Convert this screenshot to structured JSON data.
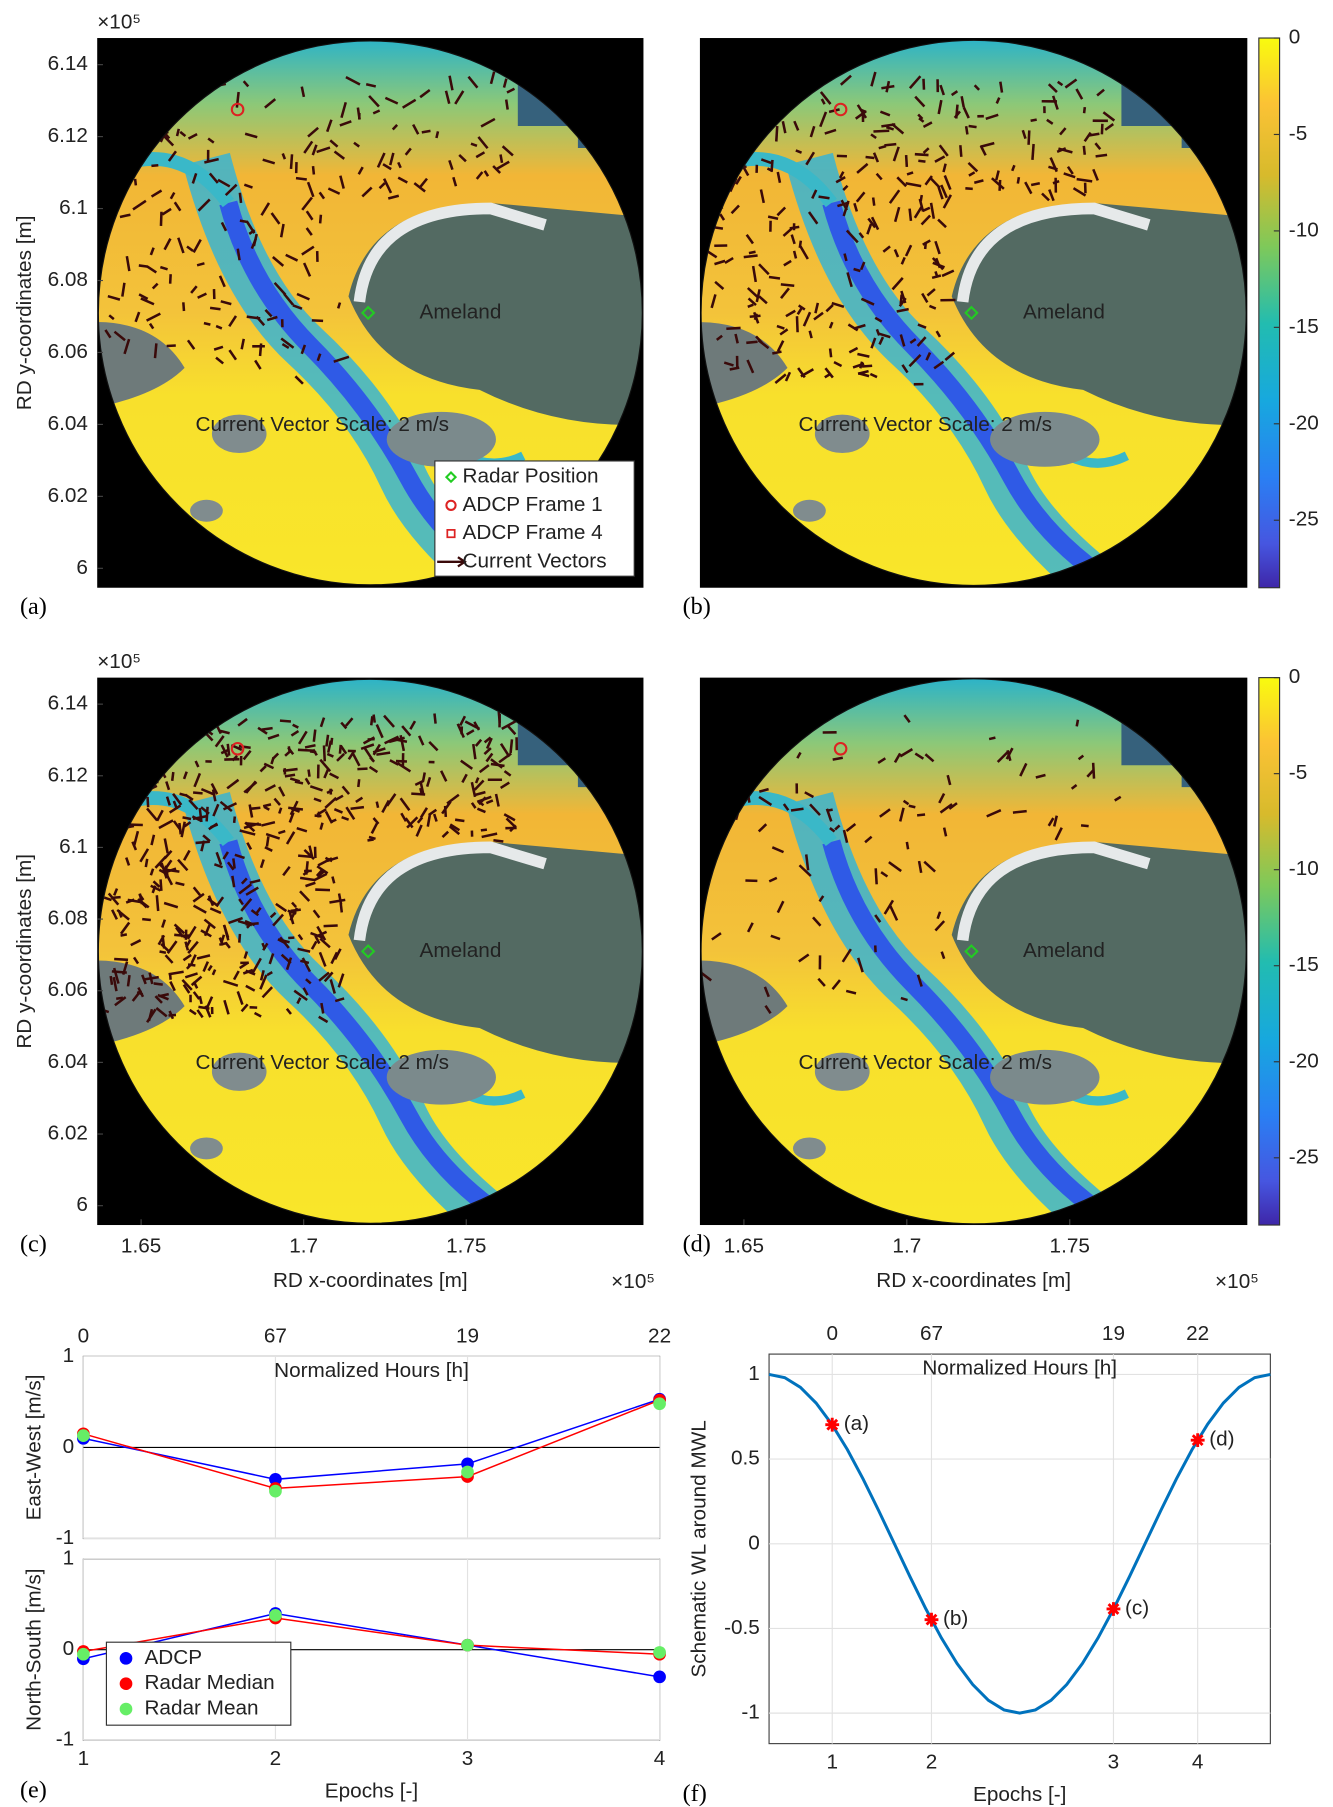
{
  "chart_data": [
    {
      "type": "map",
      "panel": "(a)",
      "ylabel": "RD y-coordinates [m]",
      "y_multiplier": "×10⁵",
      "ylim": [
        5.9946,
        6.1474
      ],
      "yticks": [
        6,
        6.02,
        6.04,
        6.06,
        6.08,
        6.1,
        6.12,
        6.14
      ],
      "annotations": [
        "Ameland",
        "Current Vector Scale: 2 m/s"
      ],
      "legend": [
        {
          "name": "Radar Position",
          "color": "#22cc22",
          "marker": "diamond"
        },
        {
          "name": "ADCP Frame 1",
          "color": "#dd2222",
          "marker": "circle"
        },
        {
          "name": "ADCP Frame 4",
          "color": "#dd2222",
          "marker": "square"
        },
        {
          "name": "Current Vectors",
          "color": "#3a0a0a",
          "marker": "arrow"
        }
      ],
      "legend_position": "lower right"
    },
    {
      "type": "map",
      "panel": "(b)",
      "annotations": [
        "Ameland",
        "Current Vector Scale: 2 m/s"
      ],
      "colorbar": {
        "ylim": [
          -28.5,
          0
        ],
        "yticks": [
          0,
          -5,
          -10,
          -15,
          -20,
          -25
        ]
      }
    },
    {
      "type": "map",
      "panel": "(c)",
      "ylabel": "RD y-coordinates [m]",
      "y_multiplier": "×10⁵",
      "ylim": [
        5.9946,
        6.1474
      ],
      "yticks": [
        6,
        6.02,
        6.04,
        6.06,
        6.08,
        6.1,
        6.12,
        6.14
      ],
      "xlabel": "RD x-coordinates [m]",
      "x_multiplier": "×10⁵",
      "xlim": [
        1.6365,
        1.8045
      ],
      "xticks": [
        1.65,
        1.7,
        1.75
      ],
      "annotations": [
        "Ameland",
        "Current Vector Scale: 2 m/s"
      ]
    },
    {
      "type": "map",
      "panel": "(d)",
      "xlabel": "RD x-coordinates [m]",
      "x_multiplier": "×10⁵",
      "xlim": [
        1.6365,
        1.8045
      ],
      "xticks": [
        1.65,
        1.7,
        1.75
      ],
      "annotations": [
        "Ameland",
        "Current Vector Scale: 2 m/s"
      ],
      "colorbar": {
        "ylim": [
          -28.5,
          0
        ],
        "yticks": [
          0,
          -5,
          -10,
          -15,
          -20,
          -25
        ]
      }
    },
    {
      "type": "line",
      "panel": "(e)",
      "top_label": "Normalized Hours [h]",
      "xlabel": "Epochs [-]",
      "x": [
        1,
        2,
        3,
        4
      ],
      "xlim": [
        1,
        4
      ],
      "xticks": [
        1,
        2,
        3,
        4
      ],
      "x2ticks": [
        {
          "value": 1,
          "label": "0"
        },
        {
          "value": 2,
          "label": "67"
        },
        {
          "value": 3,
          "label": "19"
        },
        {
          "value": 4,
          "label": "22"
        }
      ],
      "grid": true,
      "legend_position": "lower left",
      "legend": [
        {
          "name": "ADCP",
          "color": "#0000ff",
          "line": true
        },
        {
          "name": "Radar Median",
          "color": "#ff0000",
          "line": true
        },
        {
          "name": "Radar Mean",
          "color": "#66ee66",
          "line": false
        }
      ],
      "subplots": [
        {
          "ylabel": "East-West [m/s]",
          "ylim": [
            -1,
            1
          ],
          "yticks": [
            -1,
            0,
            1
          ],
          "series": [
            {
              "values": [
                0.1,
                -0.35,
                -0.18,
                0.53
              ]
            },
            {
              "values": [
                0.15,
                -0.45,
                -0.32,
                0.52
              ]
            },
            {
              "values": [
                0.13,
                -0.48,
                -0.27,
                0.48
              ]
            }
          ]
        },
        {
          "ylabel": "North-South [m/s]",
          "ylim": [
            -1,
            1
          ],
          "yticks": [
            -1,
            0,
            1
          ],
          "series": [
            {
              "values": [
                -0.1,
                0.4,
                0.05,
                -0.3
              ]
            },
            {
              "values": [
                -0.02,
                0.35,
                0.05,
                -0.05
              ]
            },
            {
              "values": [
                -0.05,
                0.38,
                0.05,
                -0.03
              ]
            }
          ]
        }
      ]
    },
    {
      "type": "line",
      "panel": "(f)",
      "top_label": "Normalized Hours [h]",
      "xlabel": "Epochs [-]",
      "ylabel": "Schematic WL around MWL",
      "xlim": [
        0,
        1
      ],
      "xticks": [
        {
          "value": 0.126,
          "label": "1"
        },
        {
          "value": 0.324,
          "label": "2"
        },
        {
          "value": 0.687,
          "label": "3"
        },
        {
          "value": 0.855,
          "label": "4"
        }
      ],
      "x2ticks": [
        {
          "value": 0.126,
          "label": "0"
        },
        {
          "value": 0.324,
          "label": "67"
        },
        {
          "value": 0.687,
          "label": "19"
        },
        {
          "value": 0.855,
          "label": "22"
        }
      ],
      "ylim": [
        -1.18,
        1.12
      ],
      "yticks": [
        -1,
        -0.5,
        0,
        0.5,
        1
      ],
      "grid": true,
      "series": [
        {
          "color": "#0072bd",
          "x": [
            0,
            0.03125,
            0.0625,
            0.09375,
            0.125,
            0.15625,
            0.1875,
            0.21875,
            0.25,
            0.28125,
            0.3125,
            0.34375,
            0.375,
            0.40625,
            0.4375,
            0.46875,
            0.5,
            0.53125,
            0.5625,
            0.59375,
            0.625,
            0.65625,
            0.6875,
            0.71875,
            0.75,
            0.78125,
            0.8125,
            0.84375,
            0.875,
            0.90625,
            0.9375,
            0.96875,
            1
          ],
          "values": [
            1,
            0.981,
            0.924,
            0.831,
            0.707,
            0.556,
            0.383,
            0.195,
            0,
            -0.195,
            -0.383,
            -0.556,
            -0.707,
            -0.831,
            -0.924,
            -0.981,
            -1,
            -0.981,
            -0.924,
            -0.831,
            -0.707,
            -0.556,
            -0.383,
            -0.195,
            0,
            0.195,
            0.383,
            0.556,
            0.707,
            0.831,
            0.924,
            0.981,
            1
          ]
        }
      ],
      "markers": {
        "color": "#ff0000",
        "x": [
          0.126,
          0.324,
          0.687,
          0.855
        ],
        "values": [
          0.703,
          -0.448,
          -0.385,
          0.612
        ],
        "labels": [
          "(a)",
          "(b)",
          "(c)",
          "(d)"
        ]
      }
    }
  ]
}
